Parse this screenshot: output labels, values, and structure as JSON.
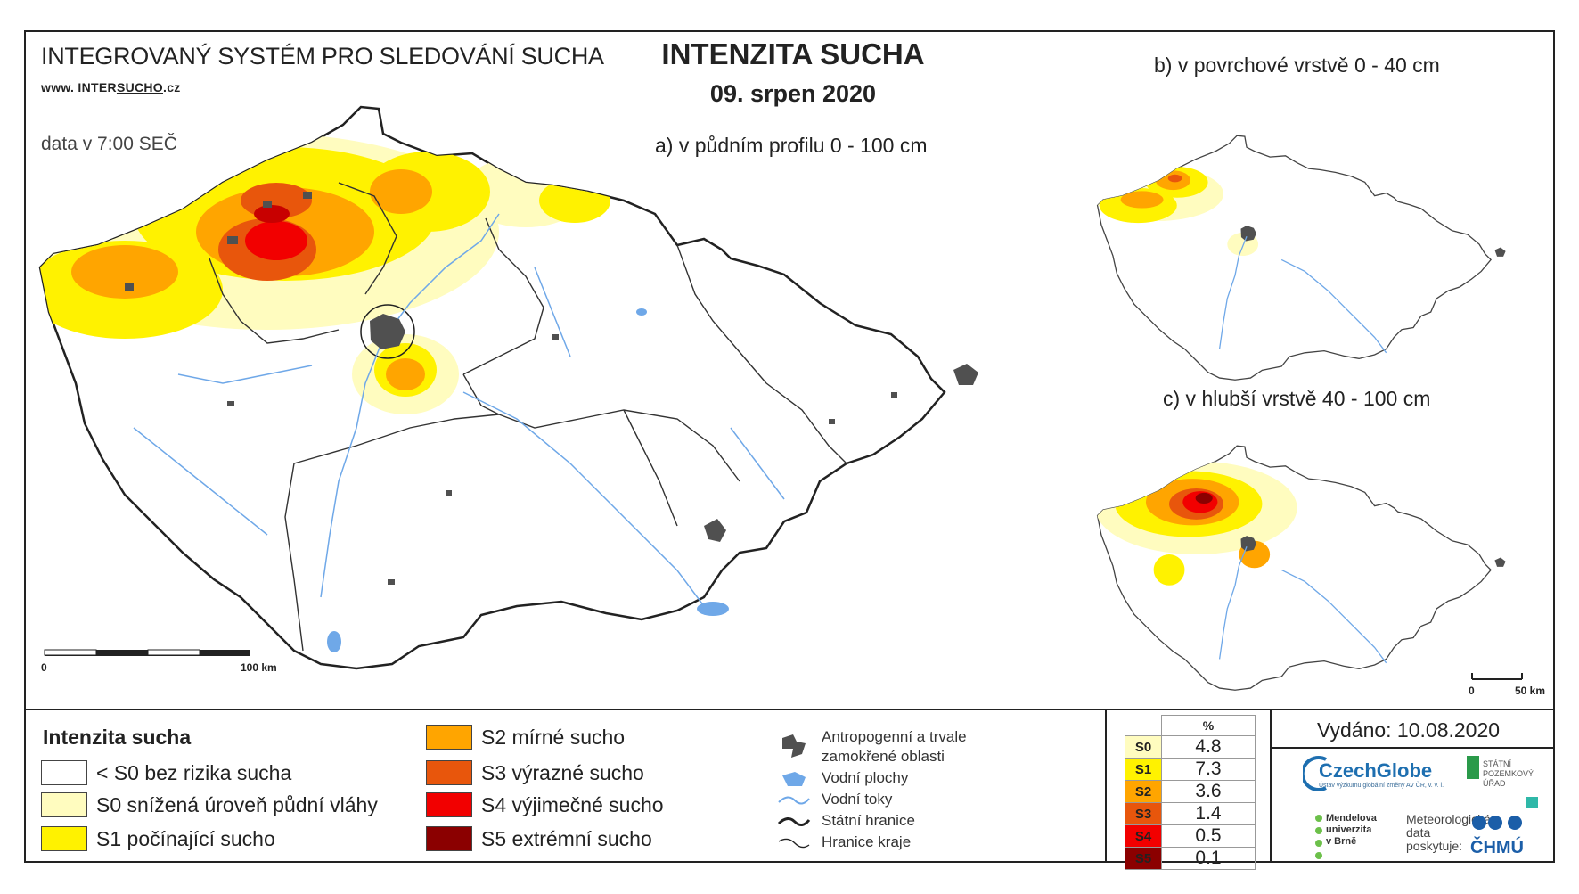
{
  "header": {
    "system_title": "INTEGROVANÝ SYSTÉM PRO SLEDOVÁNÍ SUCHA",
    "www_prefix": "www. INTER",
    "www_underlined": "SUCHO",
    "www_suffix": ".cz",
    "data_time": "data v 7:00 SEČ",
    "main_title": "INTENZITA SUCHA",
    "date": "09. srpen 2020"
  },
  "maps": {
    "a_title": "a) v půdním profilu 0 - 100 cm",
    "b_title": "b) v povrchové vrstvě 0 - 40 cm",
    "c_title": "c) v hlubší vrstvě 40 - 100 cm",
    "scale_main": {
      "start": "0",
      "end": "100 km"
    },
    "scale_small": {
      "start": "0",
      "end": "50 km"
    }
  },
  "colors": {
    "none": "#ffffff",
    "s0": "#fffcbf",
    "s1": "#fff200",
    "s2": "#ffa500",
    "s3": "#e8560c",
    "s4": "#f20000",
    "s5": "#8b0000",
    "urban": "#505050",
    "water": "#6fa8e8",
    "border": "#222222"
  },
  "legend": {
    "title": "Intenzita sucha",
    "items": [
      {
        "code": "none",
        "label": "< S0 bez rizika sucha"
      },
      {
        "code": "s0",
        "label": "S0 snížená úroveň půdní vláhy"
      },
      {
        "code": "s1",
        "label": "S1 počínající sucho"
      },
      {
        "code": "s2",
        "label": "S2 mírné sucho"
      },
      {
        "code": "s3",
        "label": "S3 výrazné sucho"
      },
      {
        "code": "s4",
        "label": "S4 výjimečné sucho"
      },
      {
        "code": "s5",
        "label": "S5 extrémní sucho"
      }
    ],
    "symbols": [
      {
        "icon": "urban-area-icon",
        "label_line1": "Antropogenní a trvale",
        "label_line2": "zamokřené oblasti"
      },
      {
        "icon": "water-body-icon",
        "label_line1": "Vodní plochy"
      },
      {
        "icon": "river-icon",
        "label_line1": "Vodní toky"
      },
      {
        "icon": "state-border-icon",
        "label_line1": "Státní hranice"
      },
      {
        "icon": "region-border-icon",
        "label_line1": "Hranice kraje"
      }
    ]
  },
  "percent_table": {
    "header": "%",
    "rows": [
      {
        "code": "S0",
        "value": "4.8"
      },
      {
        "code": "S1",
        "value": "7.3"
      },
      {
        "code": "S2",
        "value": "3.6"
      },
      {
        "code": "S3",
        "value": "1.4"
      },
      {
        "code": "S4",
        "value": "0.5"
      },
      {
        "code": "S5",
        "value": "0.1"
      }
    ]
  },
  "issued": "Vydáno: 10.08.2020",
  "logos": {
    "czechglobe": "CzechGlobe",
    "czechglobe_sub": "Ústav výzkumu globální změny AV ČR, v. v. i.",
    "spu_line1": "STÁTNÍ",
    "spu_line2": "POZEMKOVÝ",
    "spu_line3": "ÚŘAD",
    "mendel_line1": "Mendelova",
    "mendel_line2": "univerzita",
    "mendel_line3": "v Brně",
    "meteo_line1": "Meteorologická",
    "meteo_line2": "data",
    "meteo_line3": "poskytuje:",
    "chmu": "ČHMÚ"
  }
}
